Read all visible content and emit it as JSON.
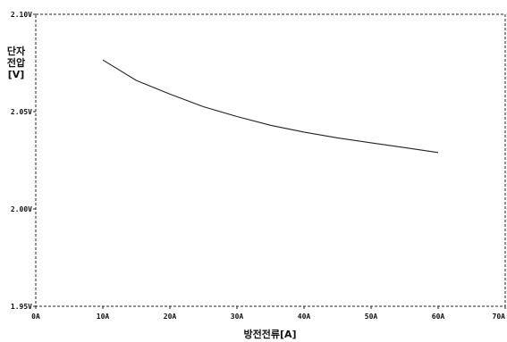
{
  "chart_data": {
    "type": "line",
    "ylabel_lines": [
      "단자",
      "전압",
      "[V]"
    ],
    "xlabel": "방전전류[A]",
    "xlim": [
      0,
      70
    ],
    "ylim": [
      1.95,
      2.1
    ],
    "x_ticks": [
      "0A",
      "10A",
      "20A",
      "30A",
      "40A",
      "50A",
      "60A",
      "70A"
    ],
    "y_ticks": [
      "2.10V",
      "2.05V",
      "2.00V",
      "1.95V"
    ],
    "grid": false,
    "series": [
      {
        "x": [
          10,
          15,
          20,
          25,
          30,
          35,
          40,
          45,
          50,
          55,
          60
        ],
        "y": [
          2.0765,
          2.066,
          2.059,
          2.0525,
          2.0475,
          2.043,
          2.0395,
          2.0365,
          2.034,
          2.0315,
          2.029
        ],
        "color": "#222222"
      }
    ]
  }
}
